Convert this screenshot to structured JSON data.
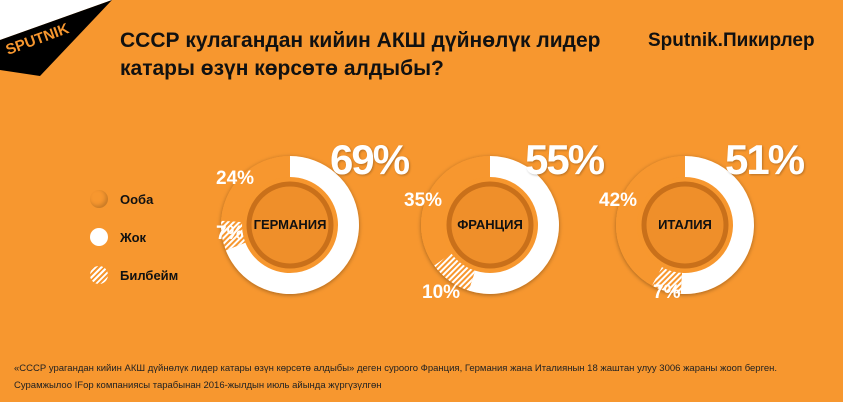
{
  "logo": "SPUTNIK",
  "title": "СССР кулагандан кийин АКШ дүйнөлүк лидер катары өзүн көрсөтө алдыбы?",
  "brand": "Sputnik.Пикирлер",
  "colors": {
    "background": "#F7972F",
    "yes": "#F7972F",
    "no": "#FFFFFF",
    "unknown": "hatched-white",
    "inner": "#E58A25"
  },
  "legend": [
    {
      "label": "Ооба",
      "key": "yes"
    },
    {
      "label": "Жок",
      "key": "no"
    },
    {
      "label": "Билбейм",
      "key": "unknown"
    }
  ],
  "chart_data": [
    {
      "type": "pie",
      "title": "ГЕРМАНИЯ",
      "labels": [
        "Жок",
        "Билбейм",
        "Ооба"
      ],
      "values": [
        69,
        7,
        24
      ],
      "value_labels": [
        "69%",
        "7%",
        "24%"
      ]
    },
    {
      "type": "pie",
      "title": "ФРАНЦИЯ",
      "labels": [
        "Жок",
        "Билбейм",
        "Ооба"
      ],
      "values": [
        55,
        10,
        35
      ],
      "value_labels": [
        "55%",
        "10%",
        "35%"
      ]
    },
    {
      "type": "pie",
      "title": "ИТАЛИЯ",
      "labels": [
        "Жок",
        "Билбейм",
        "Ооба"
      ],
      "values": [
        51,
        7,
        42
      ],
      "value_labels": [
        "51%",
        "7%",
        "42%"
      ]
    }
  ],
  "footer": [
    "«СССР урагандан кийин АКШ дүйнөлүк лидер катары өзүн көрсөтө алдыбы» деген суроого Франция, Германия жана Италиянын 18 жаштан улуу 3006 жараны жооп берген.",
    "Сурамжылоо IFop компаниясы тарабынан 2016-жылдын июль айында жүргүзүлгөн"
  ]
}
